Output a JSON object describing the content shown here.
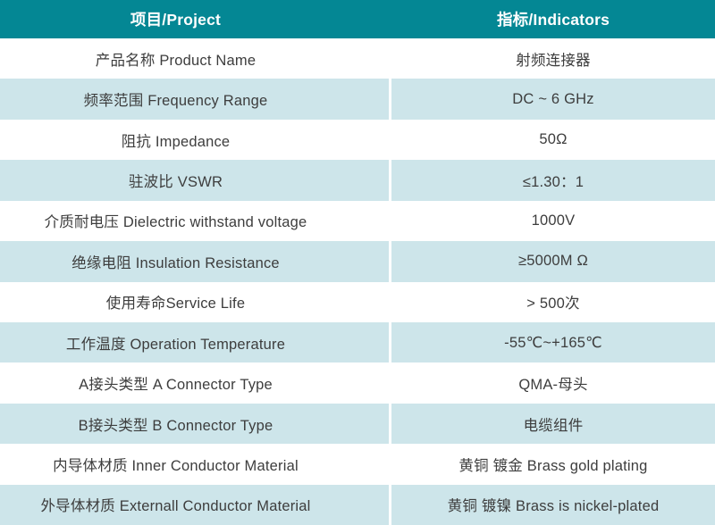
{
  "table": {
    "header": {
      "project": "项目/Project",
      "indicators": "指标/Indicators"
    },
    "rows": [
      {
        "project": "产品名称 Product Name",
        "indicator": "射频连接器"
      },
      {
        "project": "频率范围 Frequency Range",
        "indicator": "DC ~ 6 GHz"
      },
      {
        "project": "阻抗 Impedance",
        "indicator": "50Ω"
      },
      {
        "project": "驻波比 VSWR",
        "indicator": "≤1.30：1"
      },
      {
        "project": "介质耐电压 Dielectric withstand voltage",
        "indicator": "1000V"
      },
      {
        "project": "绝缘电阻 Insulation Resistance",
        "indicator": "≥5000M Ω"
      },
      {
        "project": "使用寿命Service Life",
        "indicator": "> 500次"
      },
      {
        "project": "工作温度 Operation Temperature",
        "indicator": "-55℃~+165℃"
      },
      {
        "project": "A接头类型 A Connector Type",
        "indicator": "QMA-母头"
      },
      {
        "project": "B接头类型 B Connector Type",
        "indicator": "电缆组件"
      },
      {
        "project": "内导体材质 Inner Conductor Material",
        "indicator": "黄铜 镀金 Brass gold plating"
      },
      {
        "project": "外导体材质 Externall Conductor Material",
        "indicator": "黄铜 镀镍 Brass is nickel-plated"
      }
    ],
    "colors": {
      "header_bg": "#048794",
      "header_text": "#ffffff",
      "row_bg": "#ffffff",
      "row_alt_bg": "#cde5ea",
      "cell_text": "#3d3d3d"
    }
  }
}
